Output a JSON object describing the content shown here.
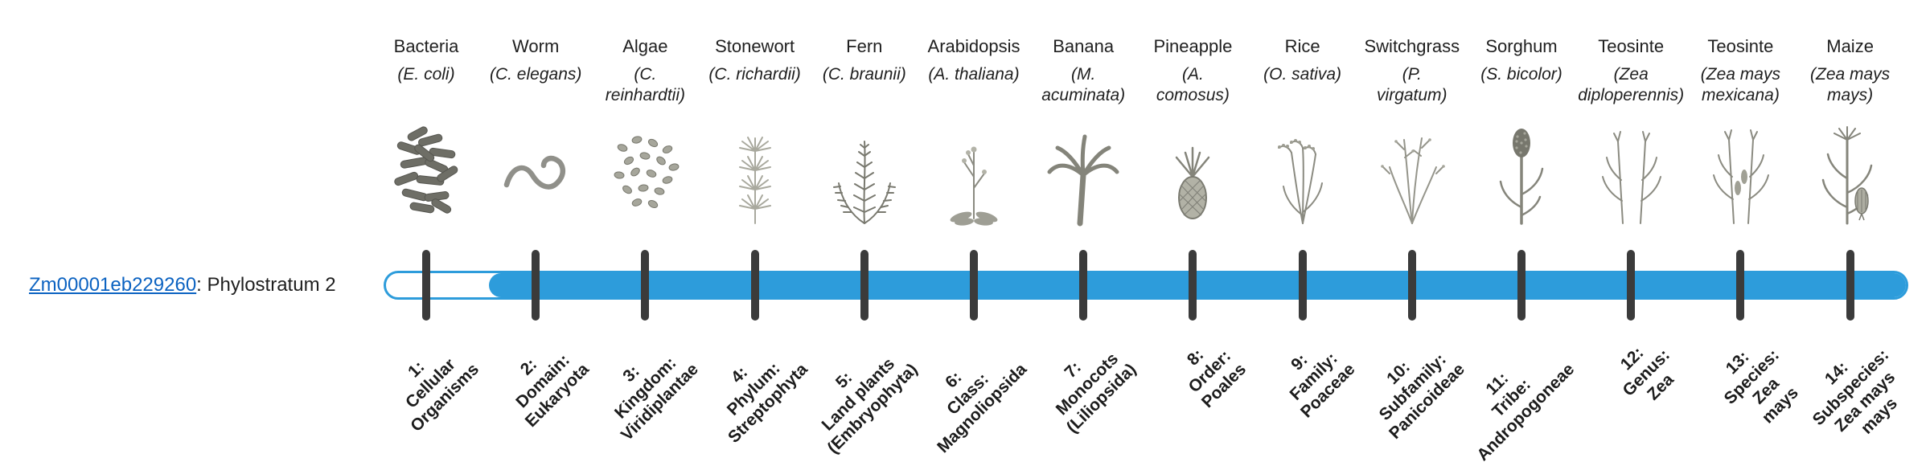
{
  "colors": {
    "bar_blue": "#2D9CDB",
    "tick_dark": "#3B3B3B",
    "link_blue": "#0B62C1",
    "text_dark": "#1F1F1F",
    "engraving_gray": "#8B8B81"
  },
  "gene": {
    "id": "Zm00001eb229260",
    "suffix": ": Phylostratum 2",
    "phylostratum": 2
  },
  "timeline": {
    "total_strata": 14,
    "filled_from_stratum": 2,
    "filled_to_stratum": 14
  },
  "organisms": [
    {
      "common": "Bacteria",
      "scientific": "(E. coli)",
      "icon": "bacteria-image",
      "phylostratum_label": "1:\nCellular\nOrganisms"
    },
    {
      "common": "Worm",
      "scientific": "(C. elegans)",
      "icon": "worm-image",
      "phylostratum_label": "2:\nDomain:\nEukaryota"
    },
    {
      "common": "Algae",
      "scientific": "(C.\nreinhardtii)",
      "icon": "algae-image",
      "phylostratum_label": "3:\nKingdom:\nViridiplantae"
    },
    {
      "common": "Stonewort",
      "scientific": "(C. richardii)",
      "icon": "stonewort-image",
      "phylostratum_label": "4:\nPhylum:\nStreptophyta"
    },
    {
      "common": "Fern",
      "scientific": "(C. braunii)",
      "icon": "fern-image",
      "phylostratum_label": "5:\nLand plants\n(Embryophyta)"
    },
    {
      "common": "Arabidopsis",
      "scientific": "(A. thaliana)",
      "icon": "arabidopsis-image",
      "phylostratum_label": "6:\nClass:\nMagnoliopsida"
    },
    {
      "common": "Banana",
      "scientific": "(M.\nacuminata)",
      "icon": "banana-image",
      "phylostratum_label": "7:\nMonocots\n(Liliopsida)"
    },
    {
      "common": "Pineapple",
      "scientific": "(A.\ncomosus)",
      "icon": "pineapple-image",
      "phylostratum_label": "8:\nOrder:\nPoales"
    },
    {
      "common": "Rice",
      "scientific": "(O. sativa)",
      "icon": "rice-image",
      "phylostratum_label": "9:\nFamily:\nPoaceae"
    },
    {
      "common": "Switchgrass",
      "scientific": "(P.\nvirgatum)",
      "icon": "switchgrass-image",
      "phylostratum_label": "10:\nSubfamily:\nPanicoideae"
    },
    {
      "common": "Sorghum",
      "scientific": "(S. bicolor)",
      "icon": "sorghum-image",
      "phylostratum_label": "11:\nTribe:\nAndropogoneae"
    },
    {
      "common": "Teosinte",
      "scientific": "(Zea\ndiploperennis)",
      "icon": "teosinte-diploperennis-image",
      "phylostratum_label": "12:\nGenus:\nZea"
    },
    {
      "common": "Teosinte",
      "scientific": "(Zea mays\nmexicana)",
      "icon": "teosinte-mexicana-image",
      "phylostratum_label": "13:\nSpecies:\nZea\nmays"
    },
    {
      "common": "Maize",
      "scientific": "(Zea mays\nmays)",
      "icon": "maize-image",
      "phylostratum_label": "14:\nSubspecies:\nZea mays\nmays"
    }
  ]
}
